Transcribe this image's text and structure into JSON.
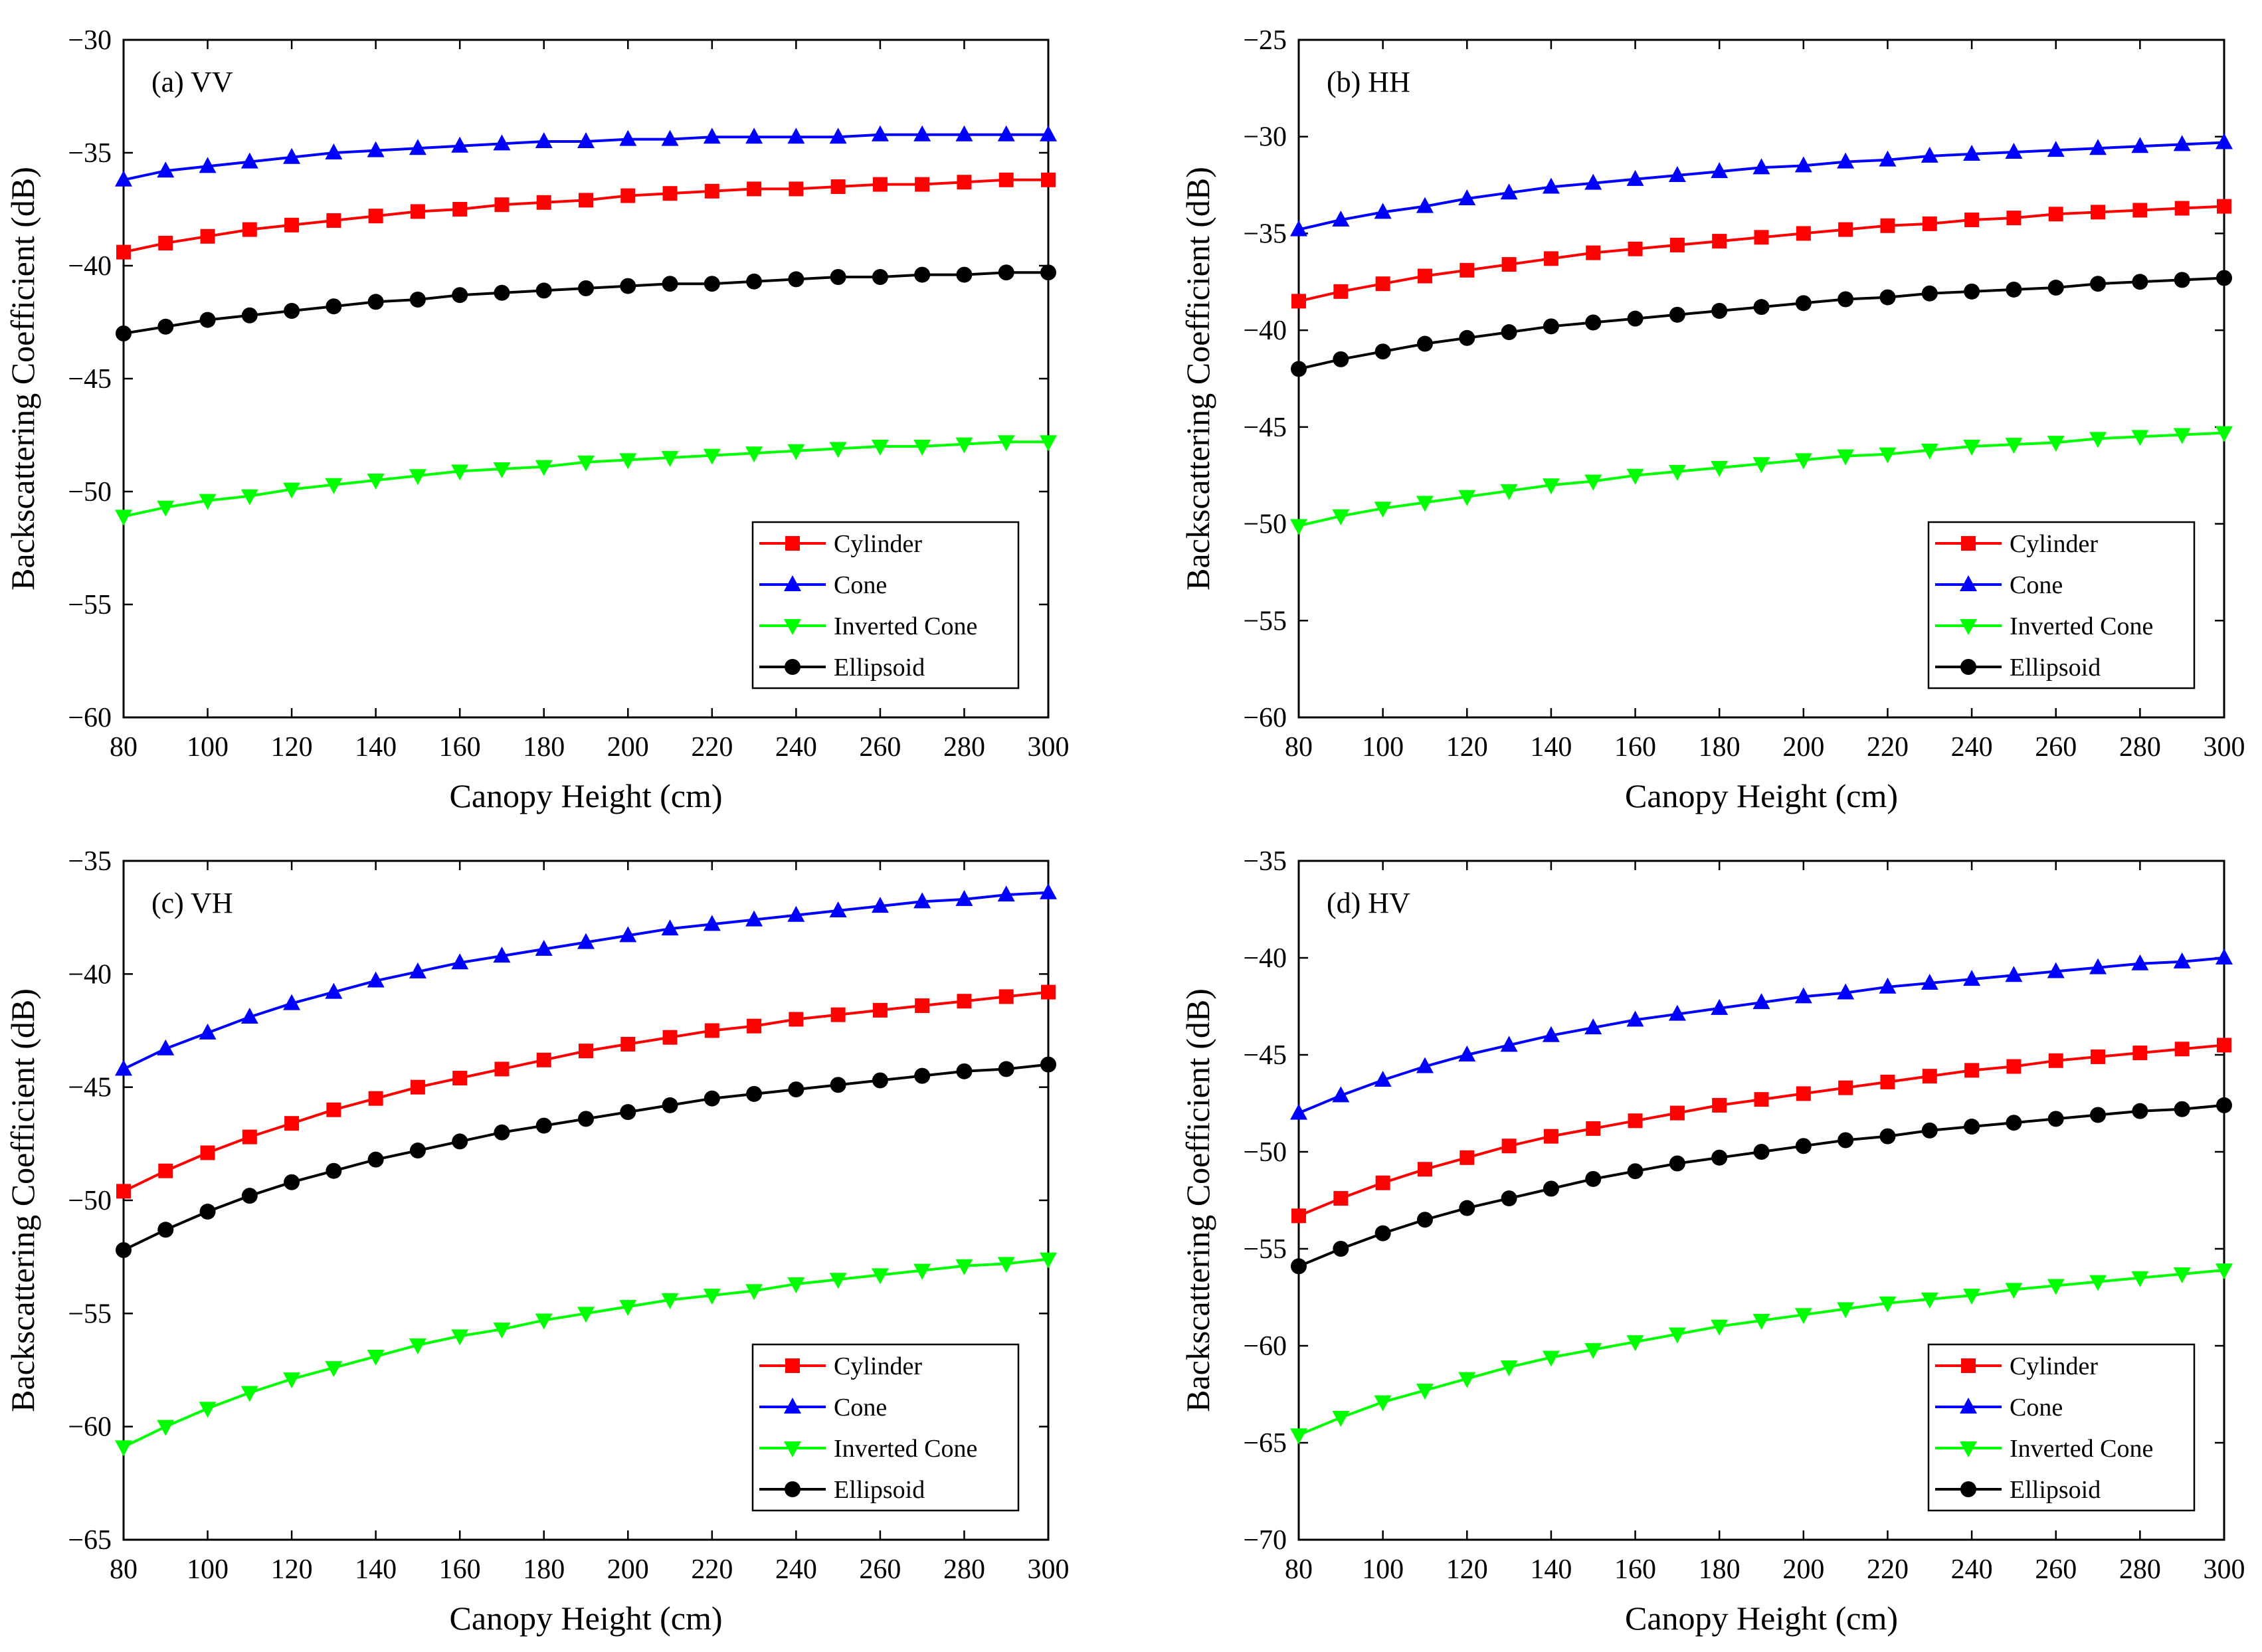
{
  "figure": {
    "rows": 2,
    "cols": 2
  },
  "series_styles": [
    {
      "name": "Cylinder",
      "color": "#ff0000",
      "marker": "square"
    },
    {
      "name": "Cone",
      "color": "#0000ff",
      "marker": "triangle-up"
    },
    {
      "name": "Inverted Cone",
      "color": "#00ff00",
      "marker": "triangle-down"
    },
    {
      "name": "Ellipsoid",
      "color": "#000000",
      "marker": "circle"
    }
  ],
  "chart_data": [
    {
      "type": "line",
      "panel_label": "(a) VV",
      "xlabel": "Canopy Height (cm)",
      "ylabel": "Backscattering Coefficient (dB)",
      "xlim": [
        80,
        300
      ],
      "ylim": [
        -60,
        -30
      ],
      "x_ticks": [
        "80",
        "100",
        "120",
        "140",
        "160",
        "180",
        "200",
        "220",
        "240",
        "260",
        "280",
        "300"
      ],
      "y_ticks": [
        "−30",
        "−35",
        "−40",
        "−45",
        "−50",
        "−55",
        "−60"
      ],
      "legend_position": "bottom-right",
      "x": [
        80,
        90,
        100,
        110,
        120,
        130,
        140,
        150,
        160,
        170,
        180,
        190,
        200,
        210,
        220,
        230,
        240,
        250,
        260,
        270,
        280,
        290,
        300
      ],
      "series": [
        {
          "name": "Cylinder",
          "values": [
            -39.4,
            -39.0,
            -38.7,
            -38.4,
            -38.2,
            -38.0,
            -37.8,
            -37.6,
            -37.5,
            -37.3,
            -37.2,
            -37.1,
            -36.9,
            -36.8,
            -36.7,
            -36.6,
            -36.6,
            -36.5,
            -36.4,
            -36.4,
            -36.3,
            -36.2,
            -36.2
          ]
        },
        {
          "name": "Cone",
          "values": [
            -36.2,
            -35.8,
            -35.6,
            -35.4,
            -35.2,
            -35.0,
            -34.9,
            -34.8,
            -34.7,
            -34.6,
            -34.5,
            -34.5,
            -34.4,
            -34.4,
            -34.3,
            -34.3,
            -34.3,
            -34.3,
            -34.2,
            -34.2,
            -34.2,
            -34.2,
            -34.2
          ]
        },
        {
          "name": "Inverted Cone",
          "values": [
            -51.1,
            -50.7,
            -50.4,
            -50.2,
            -49.9,
            -49.7,
            -49.5,
            -49.3,
            -49.1,
            -49.0,
            -48.9,
            -48.7,
            -48.6,
            -48.5,
            -48.4,
            -48.3,
            -48.2,
            -48.1,
            -48.0,
            -48.0,
            -47.9,
            -47.8,
            -47.8
          ]
        },
        {
          "name": "Ellipsoid",
          "values": [
            -43.0,
            -42.7,
            -42.4,
            -42.2,
            -42.0,
            -41.8,
            -41.6,
            -41.5,
            -41.3,
            -41.2,
            -41.1,
            -41.0,
            -40.9,
            -40.8,
            -40.8,
            -40.7,
            -40.6,
            -40.5,
            -40.5,
            -40.4,
            -40.4,
            -40.3,
            -40.3
          ]
        }
      ]
    },
    {
      "type": "line",
      "panel_label": "(b) HH",
      "xlabel": "Canopy Height (cm)",
      "ylabel": "Backscattering Coefficient (dB)",
      "xlim": [
        80,
        300
      ],
      "ylim": [
        -60,
        -25
      ],
      "x_ticks": [
        "80",
        "100",
        "120",
        "140",
        "160",
        "180",
        "200",
        "220",
        "240",
        "260",
        "280",
        "300"
      ],
      "y_ticks": [
        "−25",
        "−30",
        "−35",
        "−40",
        "−45",
        "−50",
        "−55",
        "−60"
      ],
      "legend_position": "bottom-right",
      "x": [
        80,
        90,
        100,
        110,
        120,
        130,
        140,
        150,
        160,
        170,
        180,
        190,
        200,
        210,
        220,
        230,
        240,
        250,
        260,
        270,
        280,
        290,
        300
      ],
      "series": [
        {
          "name": "Cylinder",
          "values": [
            -38.5,
            -38.0,
            -37.6,
            -37.2,
            -36.9,
            -36.6,
            -36.3,
            -36.0,
            -35.8,
            -35.6,
            -35.4,
            -35.2,
            -35.0,
            -34.8,
            -34.6,
            -34.5,
            -34.3,
            -34.2,
            -34.0,
            -33.9,
            -33.8,
            -33.7,
            -33.6
          ]
        },
        {
          "name": "Cone",
          "values": [
            -34.8,
            -34.3,
            -33.9,
            -33.6,
            -33.2,
            -32.9,
            -32.6,
            -32.4,
            -32.2,
            -32.0,
            -31.8,
            -31.6,
            -31.5,
            -31.3,
            -31.2,
            -31.0,
            -30.9,
            -30.8,
            -30.7,
            -30.6,
            -30.5,
            -30.4,
            -30.3
          ]
        },
        {
          "name": "Inverted Cone",
          "values": [
            -50.1,
            -49.6,
            -49.2,
            -48.9,
            -48.6,
            -48.3,
            -48.0,
            -47.8,
            -47.5,
            -47.3,
            -47.1,
            -46.9,
            -46.7,
            -46.5,
            -46.4,
            -46.2,
            -46.0,
            -45.9,
            -45.8,
            -45.6,
            -45.5,
            -45.4,
            -45.3
          ]
        },
        {
          "name": "Ellipsoid",
          "values": [
            -42.0,
            -41.5,
            -41.1,
            -40.7,
            -40.4,
            -40.1,
            -39.8,
            -39.6,
            -39.4,
            -39.2,
            -39.0,
            -38.8,
            -38.6,
            -38.4,
            -38.3,
            -38.1,
            -38.0,
            -37.9,
            -37.8,
            -37.6,
            -37.5,
            -37.4,
            -37.3
          ]
        }
      ]
    },
    {
      "type": "line",
      "panel_label": "(c) VH",
      "xlabel": "Canopy Height (cm)",
      "ylabel": "Backscattering Coefficient (dB)",
      "xlim": [
        80,
        300
      ],
      "ylim": [
        -65,
        -35
      ],
      "x_ticks": [
        "80",
        "100",
        "120",
        "140",
        "160",
        "180",
        "200",
        "220",
        "240",
        "260",
        "280",
        "300"
      ],
      "y_ticks": [
        "−35",
        "−40",
        "−45",
        "−50",
        "−55",
        "−60",
        "−65"
      ],
      "legend_position": "bottom-right",
      "x": [
        80,
        90,
        100,
        110,
        120,
        130,
        140,
        150,
        160,
        170,
        180,
        190,
        200,
        210,
        220,
        230,
        240,
        250,
        260,
        270,
        280,
        290,
        300
      ],
      "series": [
        {
          "name": "Cylinder",
          "values": [
            -49.6,
            -48.7,
            -47.9,
            -47.2,
            -46.6,
            -46.0,
            -45.5,
            -45.0,
            -44.6,
            -44.2,
            -43.8,
            -43.4,
            -43.1,
            -42.8,
            -42.5,
            -42.3,
            -42.0,
            -41.8,
            -41.6,
            -41.4,
            -41.2,
            -41.0,
            -40.8
          ]
        },
        {
          "name": "Cone",
          "values": [
            -44.2,
            -43.3,
            -42.6,
            -41.9,
            -41.3,
            -40.8,
            -40.3,
            -39.9,
            -39.5,
            -39.2,
            -38.9,
            -38.6,
            -38.3,
            -38.0,
            -37.8,
            -37.6,
            -37.4,
            -37.2,
            -37.0,
            -36.8,
            -36.7,
            -36.5,
            -36.4
          ]
        },
        {
          "name": "Inverted Cone",
          "values": [
            -60.9,
            -60.0,
            -59.2,
            -58.5,
            -57.9,
            -57.4,
            -56.9,
            -56.4,
            -56.0,
            -55.7,
            -55.3,
            -55.0,
            -54.7,
            -54.4,
            -54.2,
            -54.0,
            -53.7,
            -53.5,
            -53.3,
            -53.1,
            -52.9,
            -52.8,
            -52.6
          ]
        },
        {
          "name": "Ellipsoid",
          "values": [
            -52.2,
            -51.3,
            -50.5,
            -49.8,
            -49.2,
            -48.7,
            -48.2,
            -47.8,
            -47.4,
            -47.0,
            -46.7,
            -46.4,
            -46.1,
            -45.8,
            -45.5,
            -45.3,
            -45.1,
            -44.9,
            -44.7,
            -44.5,
            -44.3,
            -44.2,
            -44.0
          ]
        }
      ]
    },
    {
      "type": "line",
      "panel_label": "(d) HV",
      "xlabel": "Canopy Height (cm)",
      "ylabel": "Backscattering Coefficient (dB)",
      "xlim": [
        80,
        300
      ],
      "ylim": [
        -70,
        -35
      ],
      "x_ticks": [
        "80",
        "100",
        "120",
        "140",
        "160",
        "180",
        "200",
        "220",
        "240",
        "260",
        "280",
        "300"
      ],
      "y_ticks": [
        "−35",
        "−40",
        "−45",
        "−50",
        "−55",
        "−60",
        "−65",
        "−70"
      ],
      "legend_position": "bottom-right",
      "x": [
        80,
        90,
        100,
        110,
        120,
        130,
        140,
        150,
        160,
        170,
        180,
        190,
        200,
        210,
        220,
        230,
        240,
        250,
        260,
        270,
        280,
        290,
        300
      ],
      "series": [
        {
          "name": "Cylinder",
          "values": [
            -53.3,
            -52.4,
            -51.6,
            -50.9,
            -50.3,
            -49.7,
            -49.2,
            -48.8,
            -48.4,
            -48.0,
            -47.6,
            -47.3,
            -47.0,
            -46.7,
            -46.4,
            -46.1,
            -45.8,
            -45.6,
            -45.3,
            -45.1,
            -44.9,
            -44.7,
            -44.5
          ]
        },
        {
          "name": "Cone",
          "values": [
            -48.0,
            -47.1,
            -46.3,
            -45.6,
            -45.0,
            -44.5,
            -44.0,
            -43.6,
            -43.2,
            -42.9,
            -42.6,
            -42.3,
            -42.0,
            -41.8,
            -41.5,
            -41.3,
            -41.1,
            -40.9,
            -40.7,
            -40.5,
            -40.3,
            -40.2,
            -40.0
          ]
        },
        {
          "name": "Inverted Cone",
          "values": [
            -64.6,
            -63.7,
            -62.9,
            -62.3,
            -61.7,
            -61.1,
            -60.6,
            -60.2,
            -59.8,
            -59.4,
            -59.0,
            -58.7,
            -58.4,
            -58.1,
            -57.8,
            -57.6,
            -57.4,
            -57.1,
            -56.9,
            -56.7,
            -56.5,
            -56.3,
            -56.1
          ]
        },
        {
          "name": "Ellipsoid",
          "values": [
            -55.9,
            -55.0,
            -54.2,
            -53.5,
            -52.9,
            -52.4,
            -51.9,
            -51.4,
            -51.0,
            -50.6,
            -50.3,
            -50.0,
            -49.7,
            -49.4,
            -49.2,
            -48.9,
            -48.7,
            -48.5,
            -48.3,
            -48.1,
            -47.9,
            -47.8,
            -47.6
          ]
        }
      ]
    }
  ]
}
